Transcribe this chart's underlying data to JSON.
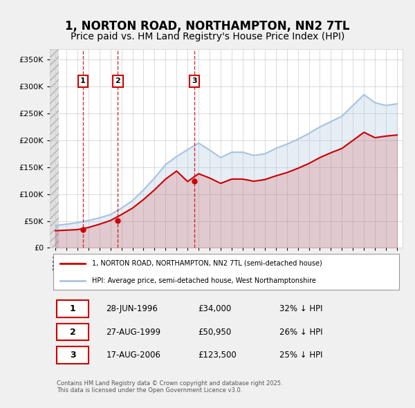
{
  "title": "1, NORTON ROAD, NORTHAMPTON, NN2 7TL",
  "subtitle": "Price paid vs. HM Land Registry's House Price Index (HPI)",
  "title_fontsize": 12,
  "subtitle_fontsize": 10,
  "background_color": "#f0f0f0",
  "plot_bg_color": "#ffffff",
  "hpi_color": "#aac4e0",
  "price_color": "#cc0000",
  "ylabel": "",
  "ylim": [
    0,
    370000
  ],
  "yticks": [
    0,
    50000,
    100000,
    150000,
    200000,
    250000,
    300000,
    350000
  ],
  "ytick_labels": [
    "£0",
    "£50K",
    "£100K",
    "£150K",
    "£200K",
    "£250K",
    "£300K",
    "£350K"
  ],
  "sale_dates": [
    "1996-06-28",
    "1999-08-27",
    "2006-08-17"
  ],
  "sale_prices": [
    34000,
    50950,
    123500
  ],
  "sale_labels": [
    "1",
    "2",
    "3"
  ],
  "legend_price_label": "1, NORTON ROAD, NORTHAMPTON, NN2 7TL (semi-detached house)",
  "legend_hpi_label": "HPI: Average price, semi-detached house, West Northamptonshire",
  "table_rows": [
    [
      "1",
      "28-JUN-1996",
      "£34,000",
      "32% ↓ HPI"
    ],
    [
      "2",
      "27-AUG-1999",
      "£50,950",
      "26% ↓ HPI"
    ],
    [
      "3",
      "17-AUG-2006",
      "£123,500",
      "25% ↓ HPI"
    ]
  ],
  "footer": "Contains HM Land Registry data © Crown copyright and database right 2025.\nThis data is licensed under the Open Government Licence v3.0.",
  "hpi_years": [
    1994,
    1995,
    1996,
    1997,
    1998,
    1999,
    2000,
    2001,
    2002,
    2003,
    2004,
    2005,
    2006,
    2007,
    2008,
    2009,
    2010,
    2011,
    2012,
    2013,
    2014,
    2015,
    2016,
    2017,
    2018,
    2019,
    2020,
    2021,
    2022,
    2023,
    2024,
    2025
  ],
  "hpi_values": [
    42000,
    44000,
    47000,
    51000,
    56000,
    62000,
    74000,
    88000,
    108000,
    130000,
    155000,
    170000,
    183000,
    195000,
    182000,
    168000,
    178000,
    178000,
    172000,
    175000,
    185000,
    193000,
    202000,
    213000,
    225000,
    235000,
    245000,
    265000,
    285000,
    270000,
    265000,
    268000
  ],
  "price_years": [
    1994,
    1995,
    1996,
    1997,
    1998,
    1999,
    2000,
    2001,
    2002,
    2003,
    2004,
    2005,
    2006,
    2007,
    2008,
    2009,
    2010,
    2011,
    2012,
    2013,
    2014,
    2015,
    2016,
    2017,
    2018,
    2019,
    2020,
    2021,
    2022,
    2023,
    2024,
    2025
  ],
  "price_values": [
    32000,
    33000,
    34000,
    38000,
    44000,
    50950,
    62000,
    74000,
    90000,
    108000,
    128000,
    143000,
    123500,
    138000,
    130000,
    120000,
    128000,
    128000,
    124000,
    127000,
    134000,
    140000,
    148000,
    157000,
    168000,
    177000,
    185000,
    200000,
    215000,
    205000,
    208000,
    210000
  ]
}
